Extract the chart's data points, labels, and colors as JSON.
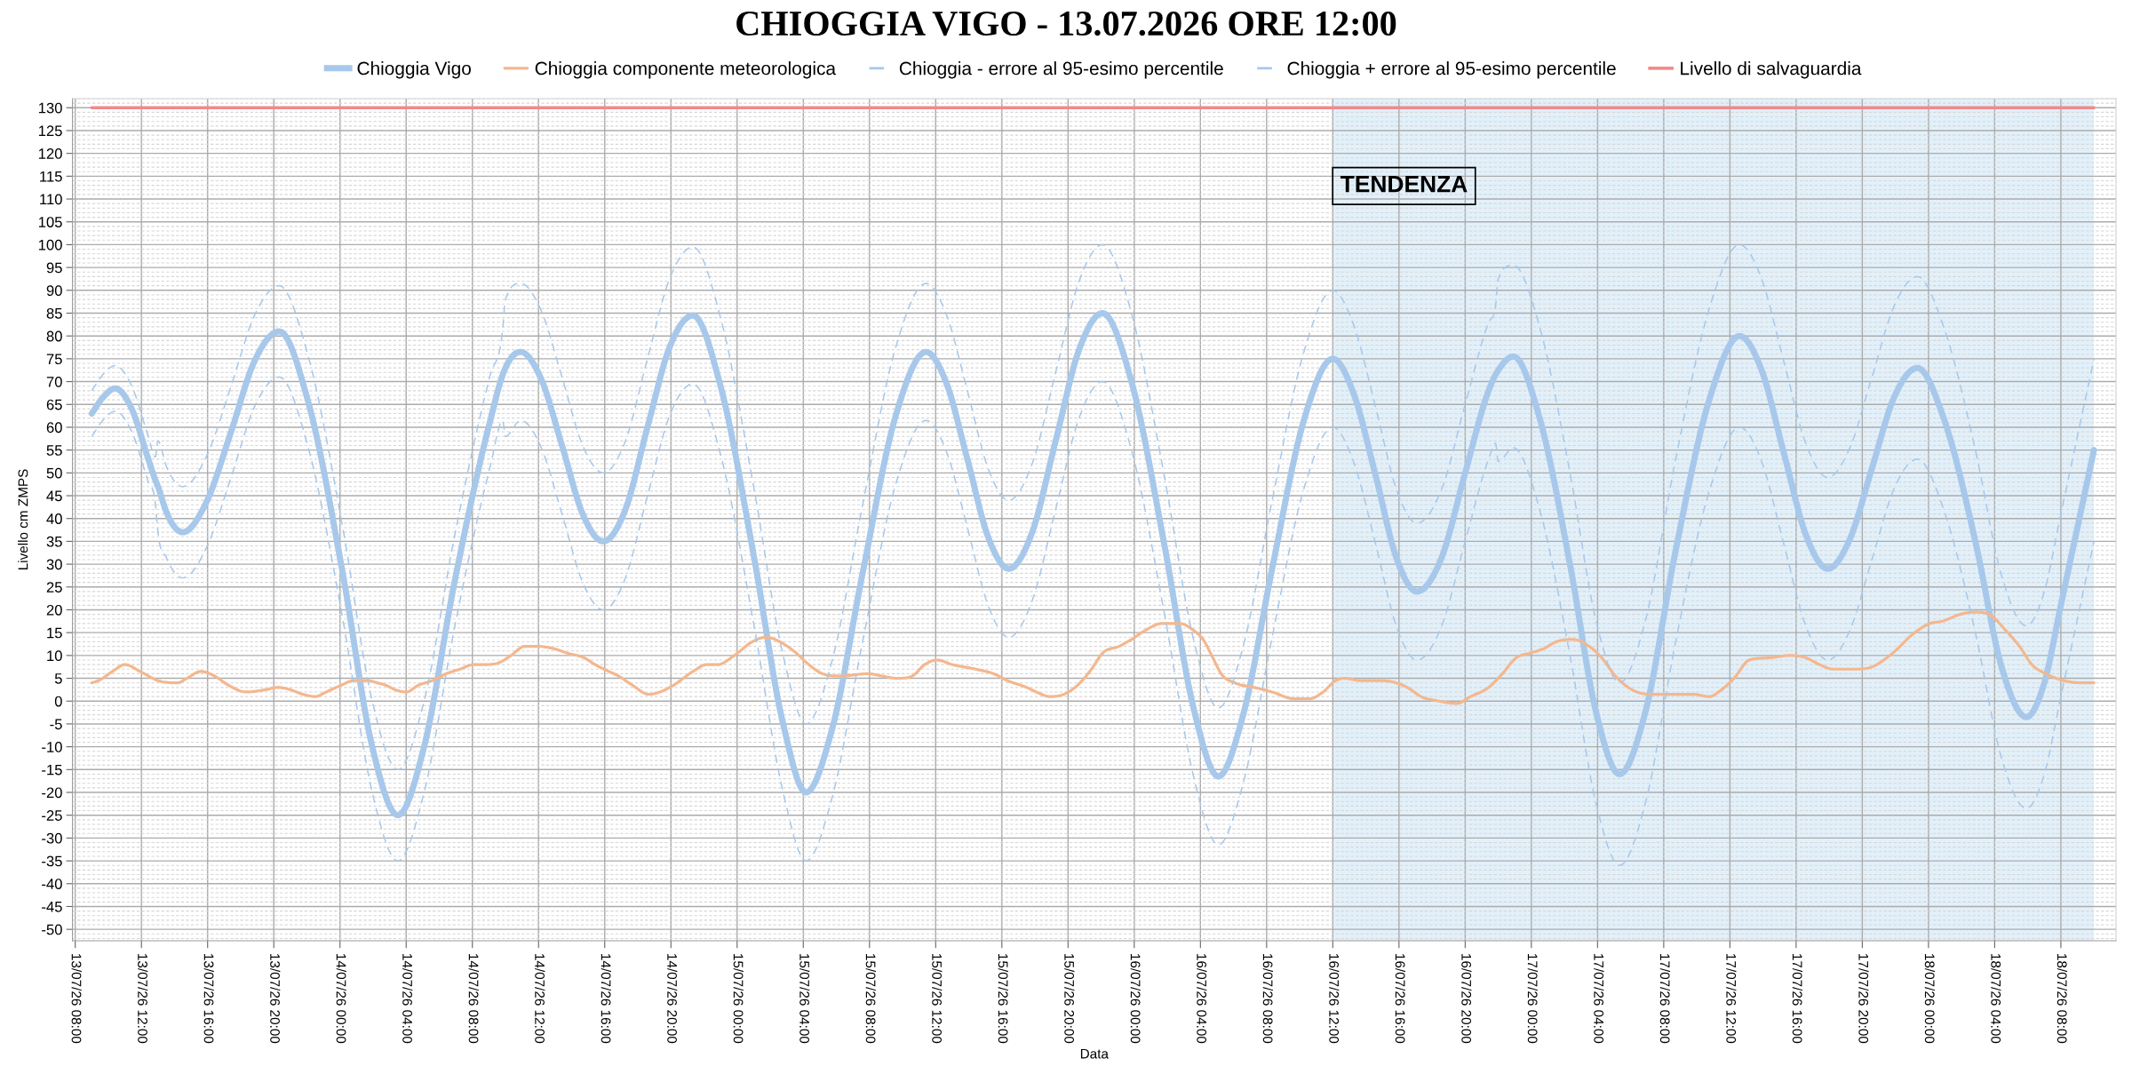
{
  "chart_data": {
    "type": "line",
    "title": "CHIOGGIA VIGO - 13.07.2026 ORE 12:00",
    "xlabel": "Data",
    "ylabel": "Livello cm ZMPS",
    "line_style": "solid",
    "grid": true,
    "legend": "top",
    "x": [
      "2026-07-13T09:00",
      "2026-07-13T09:40",
      "2026-07-13T10:25",
      "2026-07-13T11:25",
      "2026-07-13T12:25",
      "2026-07-13T12:50",
      "2026-07-13T13:00",
      "2026-07-13T13:30",
      "2026-07-13T14:30",
      "2026-07-13T15:55",
      "2026-07-13T17:25",
      "2026-07-13T18:50",
      "2026-07-13T20:20",
      "2026-07-13T22:05",
      "2026-07-14T00:10",
      "2026-07-14T01:55",
      "2026-07-14T03:30",
      "2026-07-14T05:05",
      "2026-07-14T06:55",
      "2026-07-14T09:05",
      "2026-07-14T09:50",
      "2026-07-14T10:00",
      "2026-07-14T10:55",
      "2026-07-14T12:10",
      "2026-07-14T13:25",
      "2026-07-14T14:40",
      "2026-07-14T15:55",
      "2026-07-14T17:15",
      "2026-07-14T18:35",
      "2026-07-14T19:55",
      "2026-07-14T21:20",
      "2026-07-14T23:00",
      "2026-07-15T01:00",
      "2026-07-15T02:45",
      "2026-07-15T04:10",
      "2026-07-15T05:45",
      "2026-07-15T07:35",
      "2026-07-15T09:35",
      "2026-07-15T11:25",
      "2026-07-15T12:40",
      "2026-07-15T13:55",
      "2026-07-15T15:10",
      "2026-07-15T16:25",
      "2026-07-15T17:50",
      "2026-07-15T19:15",
      "2026-07-15T20:40",
      "2026-07-15T22:05",
      "2026-07-15T23:50",
      "2026-07-16T01:50",
      "2026-07-16T03:35",
      "2026-07-16T05:05",
      "2026-07-16T06:35",
      "2026-07-16T08:20",
      "2026-07-16T10:15",
      "2026-07-16T12:00",
      "2026-07-16T13:15",
      "2026-07-16T14:35",
      "2026-07-16T15:50",
      "2026-07-16T17:05",
      "2026-07-16T18:35",
      "2026-07-16T20:00",
      "2026-07-16T21:25",
      "2026-07-16T21:50",
      "2026-07-16T22:00",
      "2026-07-16T22:55",
      "2026-07-17T00:30",
      "2026-07-17T02:20",
      "2026-07-17T03:55",
      "2026-07-17T05:20",
      "2026-07-17T06:55",
      "2026-07-17T08:40",
      "2026-07-17T10:45",
      "2026-07-17T12:35",
      "2026-07-17T13:55",
      "2026-07-17T15:15",
      "2026-07-17T16:35",
      "2026-07-17T17:55",
      "2026-07-17T19:15",
      "2026-07-17T20:35",
      "2026-07-17T21:55",
      "2026-07-17T23:20",
      "2026-07-18T00:55",
      "2026-07-18T02:50",
      "2026-07-18T04:25",
      "2026-07-18T05:55",
      "2026-07-18T07:00",
      "2026-07-18T08:00",
      "2026-07-18T09:00",
      "2026-07-18T10:00"
    ],
    "series": [
      {
        "name": "Chioggia Vigo",
        "color": "#a7c8ea",
        "values": [
          63,
          66.5,
          68.5,
          64,
          53,
          48.5,
          47,
          41.5,
          37,
          43.5,
          59,
          74.5,
          81,
          65.5,
          28,
          -9.5,
          -25,
          -10,
          26,
          61.5,
          71.5,
          73,
          76.5,
          70.5,
          56,
          41,
          35,
          42,
          60,
          77.5,
          84.5,
          69,
          32,
          -4.5,
          -20,
          -6,
          28,
          62.5,
          76.5,
          69.5,
          53,
          36,
          29,
          37,
          57,
          77,
          85,
          70,
          34,
          -1.5,
          -16.5,
          -3,
          29,
          61.5,
          75,
          67.5,
          49.5,
          31.5,
          24,
          31.5,
          50,
          68,
          71.5,
          72.5,
          75.5,
          62,
          30,
          -2.5,
          -16,
          -2,
          32,
          66,
          80,
          72.5,
          54.5,
          36.5,
          29,
          35.5,
          51,
          66.5,
          73,
          62,
          35,
          7.5,
          -3.5,
          4,
          21,
          38,
          55
        ]
      },
      {
        "name": "Chioggia componente meteorologica",
        "color": "#f4b78e",
        "x": [
          "2026-07-13T09:00",
          "2026-07-13T09:25",
          "2026-07-13T10:15",
          "2026-07-13T11:00",
          "2026-07-13T11:55",
          "2026-07-13T13:00",
          "2026-07-13T14:10",
          "2026-07-13T14:45",
          "2026-07-13T15:35",
          "2026-07-13T16:25",
          "2026-07-13T17:15",
          "2026-07-13T18:20",
          "2026-07-13T19:30",
          "2026-07-13T20:15",
          "2026-07-13T21:00",
          "2026-07-13T21:45",
          "2026-07-13T22:30",
          "2026-07-13T23:10",
          "2026-07-14T00:05",
          "2026-07-14T00:50",
          "2026-07-14T01:40",
          "2026-07-14T02:15",
          "2026-07-14T02:45",
          "2026-07-14T03:20",
          "2026-07-14T04:00",
          "2026-07-14T04:45",
          "2026-07-14T05:35",
          "2026-07-14T06:25",
          "2026-07-14T07:15",
          "2026-07-14T08:05",
          "2026-07-14T08:40",
          "2026-07-14T09:40",
          "2026-07-14T10:20",
          "2026-07-14T11:10",
          "2026-07-14T11:55",
          "2026-07-14T12:55",
          "2026-07-14T13:45",
          "2026-07-14T14:45",
          "2026-07-14T15:25",
          "2026-07-14T16:15",
          "2026-07-14T16:50",
          "2026-07-14T17:40",
          "2026-07-14T18:40",
          "2026-07-14T19:20",
          "2026-07-14T20:10",
          "2026-07-14T21:20",
          "2026-07-14T22:10",
          "2026-07-14T22:50",
          "2026-07-14T23:50",
          "2026-07-15T00:55",
          "2026-07-15T01:45",
          "2026-07-15T02:35",
          "2026-07-15T03:35",
          "2026-07-15T04:20",
          "2026-07-15T05:10",
          "2026-07-15T06:15",
          "2026-07-15T07:55",
          "2026-07-15T08:45",
          "2026-07-15T09:40",
          "2026-07-15T10:35",
          "2026-07-15T11:20",
          "2026-07-15T12:05",
          "2026-07-15T13:00",
          "2026-07-15T14:25",
          "2026-07-15T15:30",
          "2026-07-15T16:20",
          "2026-07-15T17:30",
          "2026-07-15T18:05",
          "2026-07-15T18:55",
          "2026-07-15T19:45",
          "2026-07-15T20:35",
          "2026-07-15T21:25",
          "2026-07-15T22:05",
          "2026-07-15T23:05",
          "2026-07-15T23:50",
          "2026-07-16T00:40",
          "2026-07-16T01:40",
          "2026-07-16T02:45",
          "2026-07-16T03:35",
          "2026-07-16T04:10",
          "2026-07-16T04:45",
          "2026-07-16T05:15",
          "2026-07-16T06:05",
          "2026-07-16T07:15",
          "2026-07-16T08:20",
          "2026-07-16T09:40",
          "2026-07-16T10:35",
          "2026-07-16T11:25",
          "2026-07-16T12:10",
          "2026-07-16T12:45",
          "2026-07-16T13:40",
          "2026-07-16T14:50",
          "2026-07-16T15:50",
          "2026-07-16T16:30",
          "2026-07-16T17:20",
          "2026-07-16T18:25",
          "2026-07-16T19:30",
          "2026-07-16T20:20",
          "2026-07-16T21:25",
          "2026-07-16T22:15",
          "2026-07-16T23:05",
          "2026-07-16T23:55",
          "2026-07-17T00:45",
          "2026-07-17T01:30",
          "2026-07-17T02:30",
          "2026-07-17T03:30",
          "2026-07-17T04:15",
          "2026-07-17T05:05",
          "2026-07-17T06:05",
          "2026-07-17T07:15",
          "2026-07-17T08:40",
          "2026-07-17T09:45",
          "2026-07-17T10:45",
          "2026-07-17T11:30",
          "2026-07-17T12:15",
          "2026-07-17T13:10",
          "2026-07-17T14:25",
          "2026-07-17T15:40",
          "2026-07-17T16:35",
          "2026-07-17T17:25",
          "2026-07-17T18:15",
          "2026-07-17T19:35",
          "2026-07-17T20:35",
          "2026-07-17T21:50",
          "2026-07-17T23:10",
          "2026-07-18T00:05",
          "2026-07-18T00:50",
          "2026-07-18T01:55",
          "2026-07-18T02:45",
          "2026-07-18T03:40",
          "2026-07-18T04:40",
          "2026-07-18T05:30",
          "2026-07-18T06:15",
          "2026-07-18T07:05",
          "2026-07-18T08:10",
          "2026-07-18T09:15",
          "2026-07-18T10:00"
        ],
        "values": [
          4,
          4.5,
          6.5,
          8,
          6.5,
          4.5,
          4,
          5,
          6.5,
          5.5,
          3.5,
          2,
          2.5,
          3,
          2.5,
          1.5,
          1,
          2,
          3.5,
          4.5,
          4.5,
          4,
          3.5,
          2.5,
          2,
          3.5,
          4.5,
          6,
          7,
          8,
          8,
          8.5,
          10,
          12,
          12,
          11.5,
          10.5,
          9.5,
          8,
          6.5,
          5.5,
          3.5,
          1.5,
          2,
          3.5,
          6.5,
          8,
          8,
          10,
          13,
          14,
          13,
          10.5,
          8,
          6,
          5.5,
          6,
          5.5,
          5,
          5.5,
          8,
          9,
          8,
          7,
          6,
          4.5,
          3,
          2,
          1,
          1.5,
          3.5,
          7,
          10.5,
          12,
          13.5,
          15.5,
          17,
          17,
          15.5,
          13.5,
          9.5,
          6,
          4,
          3,
          2,
          0.5,
          0.5,
          2,
          4.5,
          5,
          4.5,
          4.5,
          4,
          3,
          1,
          0,
          -0.5,
          1,
          3,
          6,
          9.5,
          10.5,
          11.5,
          13,
          13.5,
          12,
          9.5,
          5.5,
          2.5,
          1.5,
          1.5,
          1.5,
          1,
          2.5,
          5,
          9,
          9.5,
          10,
          9.5,
          8,
          7,
          7,
          7.5,
          10.5,
          15,
          17,
          17.5,
          19,
          19.5,
          19,
          15.5,
          12,
          8,
          6,
          4.5,
          4,
          4
        ]
      },
      {
        "name": "Chioggia - errore al 95-esimo percentile",
        "color": "#a7c8ea",
        "line_style": "dashed",
        "values": [
          58,
          61.5,
          63.5,
          59,
          48,
          43.5,
          37,
          31.5,
          27,
          33.5,
          49,
          64.5,
          71,
          55.5,
          18,
          -19.5,
          -35,
          -20,
          16,
          51.5,
          61.5,
          58,
          61.5,
          55.5,
          41,
          26,
          20,
          27,
          45,
          62.5,
          69.5,
          54,
          17,
          -19.5,
          -35,
          -21,
          13,
          47.5,
          61.5,
          54.5,
          38,
          21,
          14,
          22,
          42,
          62,
          70,
          55,
          19,
          -16.5,
          -31.5,
          -18,
          14,
          46.5,
          60,
          52.5,
          34.5,
          16.5,
          9,
          16.5,
          35,
          53,
          56.5,
          52.5,
          55.5,
          42,
          10,
          -22.5,
          -36,
          -22,
          12,
          46,
          60,
          52.5,
          34.5,
          16.5,
          9,
          15.5,
          31,
          46.5,
          53,
          42,
          15,
          -12.5,
          -23.5,
          -16,
          1,
          18,
          35
        ]
      },
      {
        "name": "Chioggia + errore al 95-esimo percentile",
        "color": "#a7c8ea",
        "line_style": "dashed",
        "values": [
          68,
          71.5,
          73.5,
          69,
          58,
          53.5,
          57,
          51.5,
          47,
          53.5,
          69,
          84.5,
          91,
          75.5,
          38,
          0.5,
          -15,
          0,
          36,
          71.5,
          81.5,
          88,
          91.5,
          85.5,
          71,
          56,
          50,
          57,
          75,
          92.5,
          99.5,
          84,
          47,
          10.5,
          -5,
          9,
          43,
          77.5,
          91.5,
          84.5,
          68,
          51,
          44,
          52,
          72,
          92,
          100,
          85,
          49,
          13.5,
          -1.5,
          12,
          44,
          76.5,
          90,
          82.5,
          64.5,
          46.5,
          39,
          46.5,
          65,
          83,
          86.5,
          92.5,
          95.5,
          82,
          50,
          17.5,
          4,
          18,
          52,
          86,
          100,
          92.5,
          74.5,
          56.5,
          49,
          55.5,
          71,
          86.5,
          93,
          82,
          55,
          27.5,
          16.5,
          24,
          41,
          58,
          75
        ]
      },
      {
        "name": "Livello di salvaguardia",
        "color": "#f08a8a",
        "x": [
          "2026-07-13T09:00",
          "2026-07-18T10:00"
        ],
        "values": [
          130,
          130
        ]
      }
    ],
    "bands": [
      {
        "axis": "x",
        "from": "2026-07-16T12:00",
        "to": "2026-07-18T10:00",
        "label": "TENDENZA",
        "color": "#e2f0fa"
      }
    ],
    "xlim": [
      "2026-07-13T07:50",
      "2026-07-18T11:20"
    ],
    "ylim": [
      -52.5,
      132
    ],
    "xticks": [
      {
        "value": "2026-07-13T08:00",
        "label": "13/07/26 08:00"
      },
      {
        "value": "2026-07-13T12:00",
        "label": "13/07/26 12:00"
      },
      {
        "value": "2026-07-13T16:00",
        "label": "13/07/26 16:00"
      },
      {
        "value": "2026-07-13T20:00",
        "label": "13/07/26 20:00"
      },
      {
        "value": "2026-07-14T00:00",
        "label": "14/07/26 00:00"
      },
      {
        "value": "2026-07-14T04:00",
        "label": "14/07/26 04:00"
      },
      {
        "value": "2026-07-14T08:00",
        "label": "14/07/26 08:00"
      },
      {
        "value": "2026-07-14T12:00",
        "label": "14/07/26 12:00"
      },
      {
        "value": "2026-07-14T16:00",
        "label": "14/07/26 16:00"
      },
      {
        "value": "2026-07-14T20:00",
        "label": "14/07/26 20:00"
      },
      {
        "value": "2026-07-15T00:00",
        "label": "15/07/26 00:00"
      },
      {
        "value": "2026-07-15T04:00",
        "label": "15/07/26 04:00"
      },
      {
        "value": "2026-07-15T08:00",
        "label": "15/07/26 08:00"
      },
      {
        "value": "2026-07-15T12:00",
        "label": "15/07/26 12:00"
      },
      {
        "value": "2026-07-15T16:00",
        "label": "15/07/26 16:00"
      },
      {
        "value": "2026-07-15T20:00",
        "label": "15/07/26 20:00"
      },
      {
        "value": "2026-07-16T00:00",
        "label": "16/07/26 00:00"
      },
      {
        "value": "2026-07-16T04:00",
        "label": "16/07/26 04:00"
      },
      {
        "value": "2026-07-16T08:00",
        "label": "16/07/26 08:00"
      },
      {
        "value": "2026-07-16T12:00",
        "label": "16/07/26 12:00"
      },
      {
        "value": "2026-07-16T16:00",
        "label": "16/07/26 16:00"
      },
      {
        "value": "2026-07-16T20:00",
        "label": "16/07/26 20:00"
      },
      {
        "value": "2026-07-17T00:00",
        "label": "17/07/26 00:00"
      },
      {
        "value": "2026-07-17T04:00",
        "label": "17/07/26 04:00"
      },
      {
        "value": "2026-07-17T08:00",
        "label": "17/07/26 08:00"
      },
      {
        "value": "2026-07-17T12:00",
        "label": "17/07/26 12:00"
      },
      {
        "value": "2026-07-17T16:00",
        "label": "17/07/26 16:00"
      },
      {
        "value": "2026-07-17T20:00",
        "label": "17/07/26 20:00"
      },
      {
        "value": "2026-07-18T00:00",
        "label": "18/07/26 00:00"
      },
      {
        "value": "2026-07-18T04:00",
        "label": "18/07/26 04:00"
      },
      {
        "value": "2026-07-18T08:00",
        "label": "18/07/26 08:00"
      }
    ],
    "yticks": [
      -50,
      -45,
      -40,
      -35,
      -30,
      -25,
      -20,
      -15,
      -10,
      -5,
      0,
      5,
      10,
      15,
      20,
      25,
      30,
      35,
      40,
      45,
      50,
      55,
      60,
      65,
      70,
      75,
      80,
      85,
      90,
      95,
      100,
      105,
      110,
      115,
      120,
      125,
      130
    ]
  }
}
